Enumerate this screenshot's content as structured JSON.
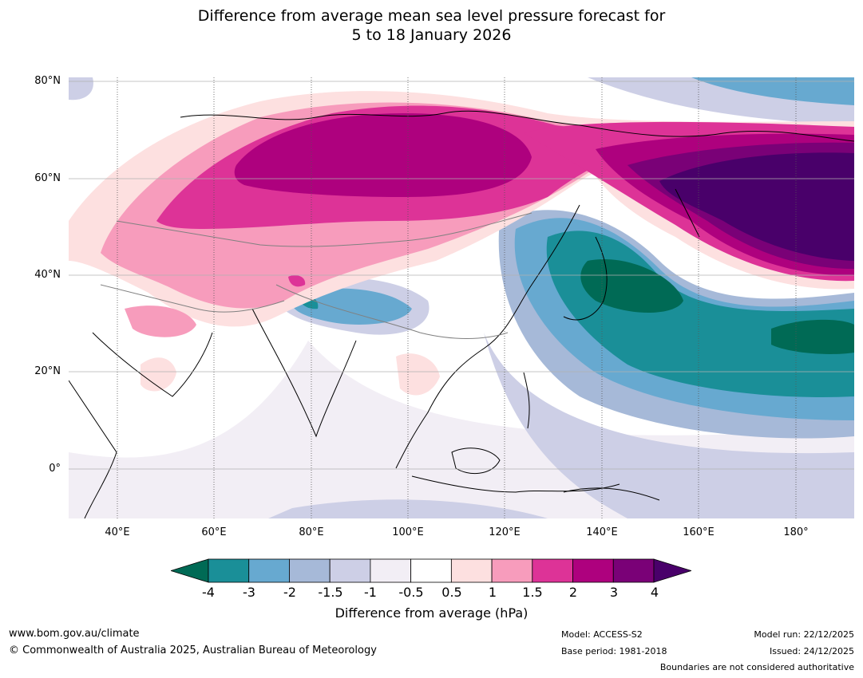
{
  "title": {
    "line1": "Difference from average mean sea level pressure forecast for",
    "line2": "5 to 18 January 2026"
  },
  "map": {
    "lat_labels": [
      "80°N",
      "60°N",
      "40°N",
      "20°N",
      "0°"
    ],
    "lon_labels": [
      "40°E",
      "60°E",
      "80°E",
      "100°E",
      "120°E",
      "140°E",
      "160°E",
      "180°"
    ],
    "colors": {
      "neg4": "#006a55",
      "neg3": "#1a8f98",
      "neg2": "#67a9d0",
      "neg15": "#a6b9d8",
      "neg1": "#cdcfe6",
      "neg05": "#f2eef5",
      "zero": "#ffffff",
      "pos05": "#fde0e0",
      "pos1": "#f79cbc",
      "pos15": "#dd3397",
      "pos2": "#ae017e",
      "pos3": "#7a0177",
      "pos4": "#49006a"
    }
  },
  "colorbar": {
    "ticks": [
      "-4",
      "-3",
      "-2",
      "-1.5",
      "-1",
      "-0.5",
      "0.5",
      "1",
      "1.5",
      "2",
      "3",
      "4"
    ],
    "colors": [
      "#006a55",
      "#1a8f98",
      "#67a9d0",
      "#a6b9d8",
      "#cdcfe6",
      "#f2eef5",
      "#ffffff",
      "#fde0e0",
      "#f79cbc",
      "#dd3397",
      "#ae017e",
      "#7a0177",
      "#49006a"
    ],
    "label": "Difference from average (hPa)"
  },
  "footer": {
    "url": "www.bom.gov.au/climate",
    "copyright": "© Commonwealth of Australia 2025, Australian Bureau of Meteorology",
    "model": "Model: ACCESS-S2",
    "base_period": "Base period: 1981-2018",
    "model_run": "Model run: 22/12/2025",
    "issued": "Issued: 24/12/2025",
    "boundaries": "Boundaries are not considered authoritative"
  }
}
